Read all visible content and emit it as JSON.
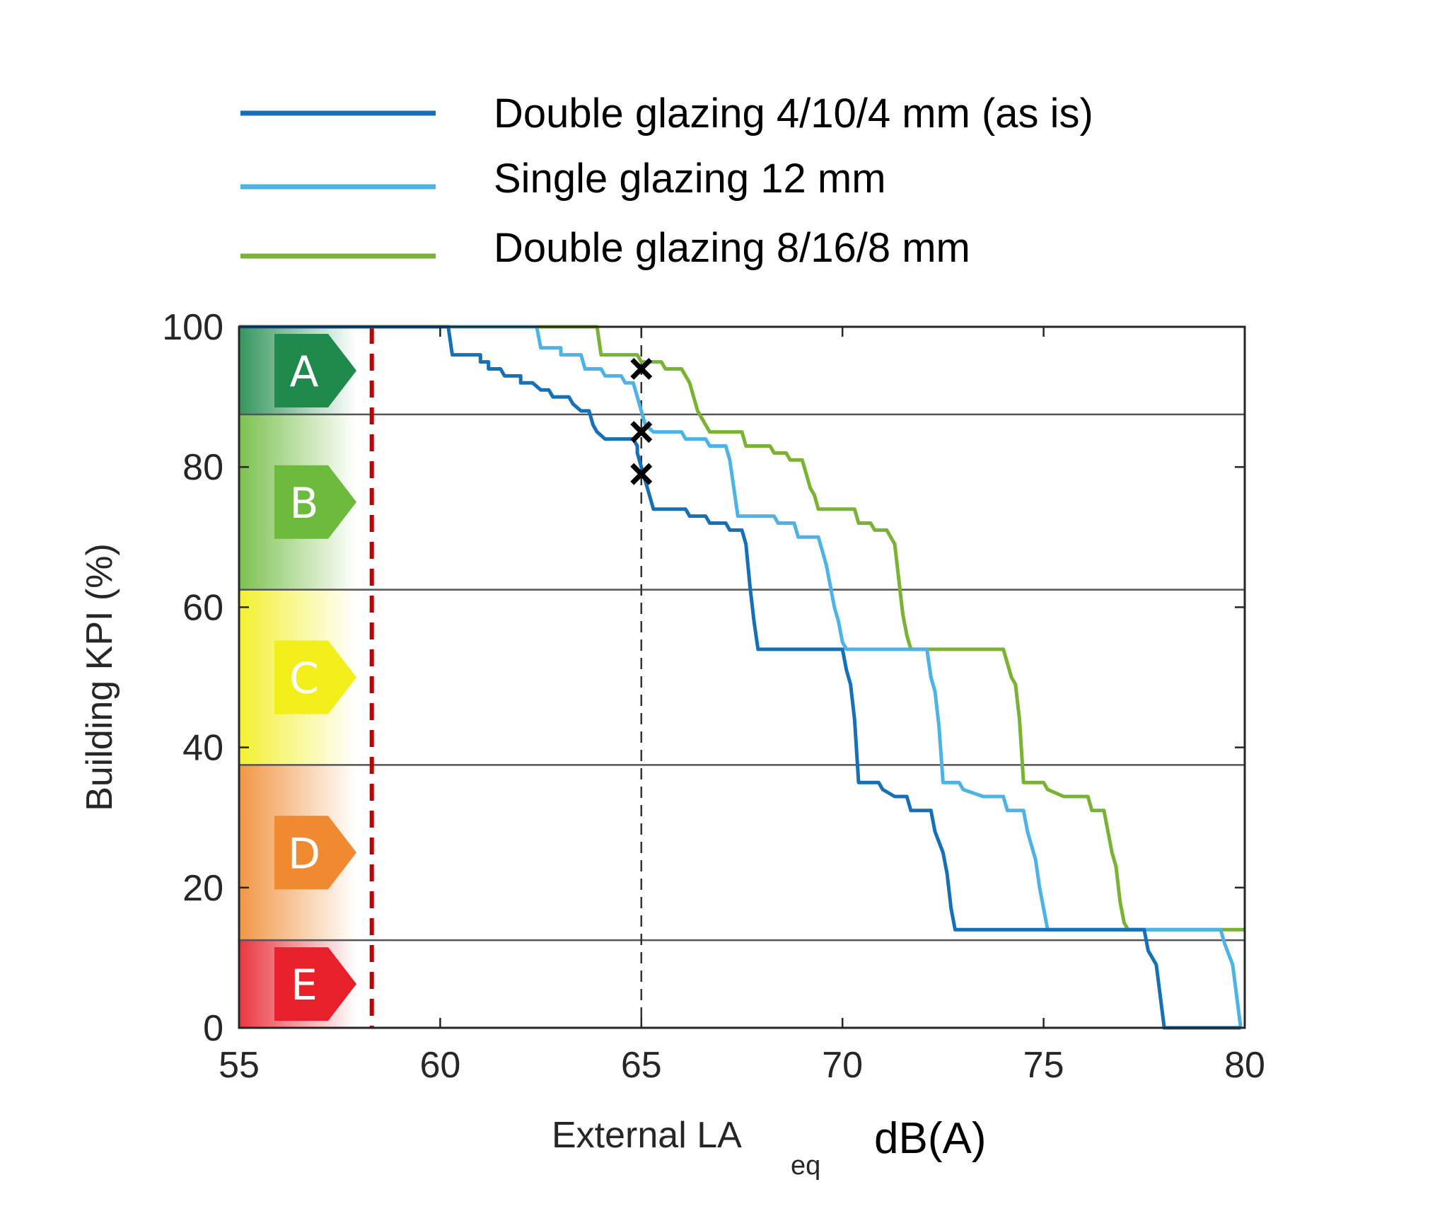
{
  "chart_data": {
    "type": "line",
    "xlabel": "External LA",
    "xlabel_sub": "eq",
    "xunit": "dB(A)",
    "ylabel": "Building KPI (%)",
    "xlim": [
      55,
      80
    ],
    "ylim": [
      0,
      100
    ],
    "xticks": [
      "55",
      "60",
      "65",
      "70",
      "75",
      "80"
    ],
    "yticks": [
      "0",
      "20",
      "40",
      "60",
      "80",
      "100"
    ],
    "legend_position": "top",
    "bands": [
      {
        "label": "A",
        "from": 87.5,
        "to": 100,
        "color": "#1f8a4c"
      },
      {
        "label": "B",
        "from": 62.5,
        "to": 87.5,
        "color": "#6cbb3c"
      },
      {
        "label": "C",
        "from": 37.5,
        "to": 62.5,
        "color": "#f2ef1a"
      },
      {
        "label": "D",
        "from": 12.5,
        "to": 37.5,
        "color": "#f08a30"
      },
      {
        "label": "E",
        "from": 0,
        "to": 12.5,
        "color": "#e8202a"
      }
    ],
    "threshold_x": 58.3,
    "threshold_color": "#c00000",
    "reference_x": 65,
    "markers": [
      {
        "x": 65,
        "y": 94
      },
      {
        "x": 65,
        "y": 85
      },
      {
        "x": 65,
        "y": 79
      }
    ],
    "series": [
      {
        "name": "Double glazing 4/10/4 mm (as is)",
        "color": "#1670b8",
        "points": [
          [
            55,
            100
          ],
          [
            60.2,
            100
          ],
          [
            60.3,
            96
          ],
          [
            61.0,
            96
          ],
          [
            61.0,
            95
          ],
          [
            61.2,
            95
          ],
          [
            61.2,
            94
          ],
          [
            61.5,
            94
          ],
          [
            61.6,
            93
          ],
          [
            62.0,
            93
          ],
          [
            62.0,
            92
          ],
          [
            62.3,
            92
          ],
          [
            62.5,
            91
          ],
          [
            62.7,
            91
          ],
          [
            62.8,
            90
          ],
          [
            63.2,
            90
          ],
          [
            63.3,
            89
          ],
          [
            63.5,
            88
          ],
          [
            63.7,
            88
          ],
          [
            63.8,
            86
          ],
          [
            63.9,
            85
          ],
          [
            64.1,
            84
          ],
          [
            64.8,
            84
          ],
          [
            64.9,
            83
          ],
          [
            64.9,
            82
          ],
          [
            65.0,
            80
          ],
          [
            65.1,
            78
          ],
          [
            65.2,
            76
          ],
          [
            65.3,
            74
          ],
          [
            66.1,
            74
          ],
          [
            66.2,
            73
          ],
          [
            66.6,
            73
          ],
          [
            66.7,
            72
          ],
          [
            67.1,
            72
          ],
          [
            67.2,
            71
          ],
          [
            67.5,
            71
          ],
          [
            67.6,
            69
          ],
          [
            67.7,
            63
          ],
          [
            67.8,
            58
          ],
          [
            67.9,
            54
          ],
          [
            70.0,
            54
          ],
          [
            70.1,
            51
          ],
          [
            70.2,
            49
          ],
          [
            70.3,
            44
          ],
          [
            70.4,
            35
          ],
          [
            70.9,
            35
          ],
          [
            71.0,
            34
          ],
          [
            71.3,
            33
          ],
          [
            71.6,
            33
          ],
          [
            71.7,
            31
          ],
          [
            72.2,
            31
          ],
          [
            72.3,
            28
          ],
          [
            72.5,
            25
          ],
          [
            72.6,
            22
          ],
          [
            72.7,
            17
          ],
          [
            72.8,
            14
          ],
          [
            77.5,
            14
          ],
          [
            77.6,
            11
          ],
          [
            77.8,
            9
          ],
          [
            78.0,
            0
          ],
          [
            79.9,
            0
          ]
        ]
      },
      {
        "name": "Single glazing 12 mm",
        "color": "#4db3e6",
        "points": [
          [
            55,
            100
          ],
          [
            62.4,
            100
          ],
          [
            62.5,
            97
          ],
          [
            63.0,
            97
          ],
          [
            63.0,
            96
          ],
          [
            63.5,
            96
          ],
          [
            63.6,
            94
          ],
          [
            64.0,
            94
          ],
          [
            64.1,
            93
          ],
          [
            64.5,
            93
          ],
          [
            64.6,
            92
          ],
          [
            64.8,
            92
          ],
          [
            64.9,
            90
          ],
          [
            65.0,
            88
          ],
          [
            65.1,
            86
          ],
          [
            65.3,
            85
          ],
          [
            66.0,
            85
          ],
          [
            66.1,
            84
          ],
          [
            66.6,
            84
          ],
          [
            66.7,
            83
          ],
          [
            67.1,
            83
          ],
          [
            67.2,
            81
          ],
          [
            67.3,
            77
          ],
          [
            67.4,
            73
          ],
          [
            68.3,
            73
          ],
          [
            68.4,
            72
          ],
          [
            68.8,
            72
          ],
          [
            68.9,
            70
          ],
          [
            69.4,
            70
          ],
          [
            69.5,
            68
          ],
          [
            69.6,
            66
          ],
          [
            69.7,
            63
          ],
          [
            69.8,
            60
          ],
          [
            69.9,
            58
          ],
          [
            70.0,
            55
          ],
          [
            70.1,
            54
          ],
          [
            72.1,
            54
          ],
          [
            72.2,
            50
          ],
          [
            72.3,
            48
          ],
          [
            72.4,
            43
          ],
          [
            72.5,
            35
          ],
          [
            72.9,
            35
          ],
          [
            73.0,
            34
          ],
          [
            73.5,
            33
          ],
          [
            74.0,
            33
          ],
          [
            74.1,
            31
          ],
          [
            74.5,
            31
          ],
          [
            74.6,
            28
          ],
          [
            74.8,
            24
          ],
          [
            74.9,
            20
          ],
          [
            75.0,
            17
          ],
          [
            75.1,
            14
          ],
          [
            79.4,
            14
          ],
          [
            79.5,
            12
          ],
          [
            79.7,
            9
          ],
          [
            79.9,
            0
          ]
        ]
      },
      {
        "name": "Double glazing 8/16/8 mm",
        "color": "#7ab234",
        "points": [
          [
            55,
            100
          ],
          [
            63.9,
            100
          ],
          [
            64.0,
            96
          ],
          [
            64.9,
            96
          ],
          [
            65.0,
            95
          ],
          [
            65.5,
            95
          ],
          [
            65.6,
            94
          ],
          [
            66.0,
            94
          ],
          [
            66.2,
            92
          ],
          [
            66.4,
            88
          ],
          [
            66.6,
            86
          ],
          [
            66.7,
            85
          ],
          [
            67.5,
            85
          ],
          [
            67.6,
            83
          ],
          [
            68.2,
            83
          ],
          [
            68.3,
            82
          ],
          [
            68.6,
            82
          ],
          [
            68.7,
            81
          ],
          [
            69.0,
            81
          ],
          [
            69.1,
            79
          ],
          [
            69.2,
            77
          ],
          [
            69.3,
            76
          ],
          [
            69.4,
            74
          ],
          [
            70.3,
            74
          ],
          [
            70.4,
            72
          ],
          [
            70.7,
            72
          ],
          [
            70.8,
            71
          ],
          [
            71.1,
            71
          ],
          [
            71.3,
            69
          ],
          [
            71.4,
            64
          ],
          [
            71.5,
            59
          ],
          [
            71.6,
            56
          ],
          [
            71.7,
            54
          ],
          [
            74.0,
            54
          ],
          [
            74.2,
            50
          ],
          [
            74.3,
            49
          ],
          [
            74.4,
            44
          ],
          [
            74.5,
            35
          ],
          [
            75.0,
            35
          ],
          [
            75.1,
            34
          ],
          [
            75.5,
            33
          ],
          [
            76.1,
            33
          ],
          [
            76.2,
            31
          ],
          [
            76.5,
            31
          ],
          [
            76.6,
            28
          ],
          [
            76.7,
            25
          ],
          [
            76.8,
            23
          ],
          [
            76.9,
            18
          ],
          [
            77.0,
            15
          ],
          [
            77.1,
            14
          ],
          [
            80.0,
            14
          ]
        ]
      }
    ]
  }
}
